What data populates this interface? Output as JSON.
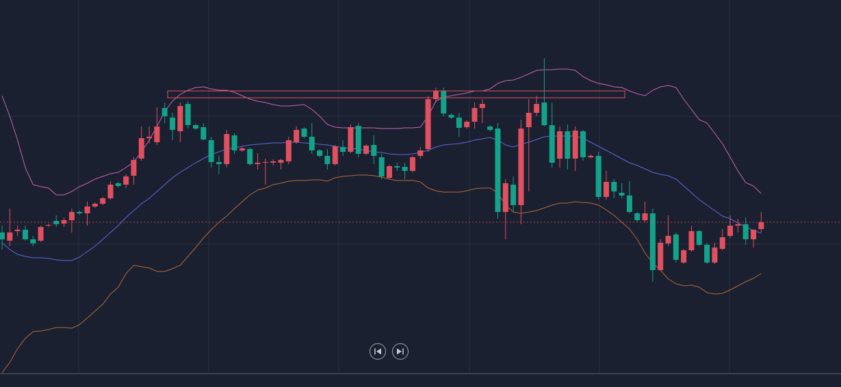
{
  "chart_data": {
    "type": "candlestick",
    "up_color": "#e0505e",
    "down_color": "#13a38a",
    "ylim": [
      0,
      546
    ],
    "open": [
      206,
      194,
      208,
      210,
      196,
      194,
      216,
      223,
      219,
      224,
      236,
      234,
      244,
      248,
      256,
      278,
      276,
      289,
      314,
      344,
      338,
      388,
      374,
      354,
      394,
      363,
      360,
      341,
      309,
      306,
      348,
      326,
      328,
      306,
      308,
      308,
      308,
      310,
      338,
      358,
      346,
      326,
      318,
      306,
      331,
      324,
      362,
      321,
      334,
      316,
      286,
      303,
      302,
      296,
      318,
      328,
      401,
      413,
      378,
      374,
      360,
      368,
      388,
      361,
      358,
      236,
      276,
      246,
      360,
      381,
      396,
      363,
      314,
      354,
      314,
      354,
      316,
      318,
      258,
      280,
      264,
      260,
      234,
      224,
      234,
      151,
      190,
      203,
      162,
      180,
      208,
      188,
      162,
      182,
      201,
      216,
      218,
      196,
      211
    ],
    "high": [
      216,
      241,
      216,
      216,
      201,
      216,
      219,
      231,
      228,
      241,
      238,
      251,
      250,
      258,
      281,
      280,
      291,
      316,
      361,
      361,
      389,
      396,
      381,
      396,
      398,
      365,
      366,
      346,
      318,
      356,
      351,
      331,
      330,
      322,
      314,
      313,
      314,
      346,
      361,
      360,
      366,
      328,
      328,
      334,
      341,
      364,
      366,
      335,
      348,
      321,
      305,
      308,
      308,
      318,
      331,
      406,
      418,
      418,
      380,
      381,
      370,
      396,
      401,
      363,
      366,
      284,
      288,
      371,
      401,
      406,
      461,
      396,
      361,
      364,
      361,
      356,
      320,
      324,
      296,
      284,
      278,
      281,
      236,
      251,
      241,
      196,
      231,
      206,
      182,
      216,
      210,
      191,
      191,
      211,
      231,
      226,
      228,
      211,
      236
    ],
    "low": [
      181,
      186,
      201,
      194,
      186,
      192,
      214,
      214,
      214,
      206,
      232,
      216,
      242,
      246,
      254,
      272,
      271,
      276,
      311,
      336,
      334,
      366,
      341,
      338,
      358,
      356,
      341,
      301,
      291,
      301,
      321,
      324,
      304,
      298,
      276,
      304,
      298,
      306,
      336,
      344,
      321,
      316,
      298,
      304,
      318,
      322,
      316,
      319,
      306,
      284,
      284,
      296,
      284,
      294,
      314,
      324,
      396,
      376,
      372,
      346,
      358,
      358,
      366,
      354,
      226,
      196,
      236,
      218,
      266,
      376,
      361,
      301,
      301,
      298,
      296,
      311,
      314,
      254,
      254,
      256,
      256,
      234,
      222,
      221,
      134,
      150,
      186,
      162,
      160,
      178,
      186,
      160,
      160,
      180,
      198,
      206,
      188,
      184,
      206
    ],
    "close": [
      196,
      206,
      210,
      196,
      190,
      214,
      217,
      218,
      224,
      236,
      234,
      244,
      248,
      256,
      276,
      274,
      288,
      312,
      344,
      346,
      361,
      376,
      356,
      391,
      363,
      358,
      342,
      309,
      306,
      350,
      326,
      329,
      306,
      308,
      309,
      310,
      312,
      341,
      356,
      346,
      326,
      318,
      306,
      332,
      324,
      360,
      321,
      333,
      318,
      288,
      303,
      301,
      296,
      316,
      326,
      401,
      413,
      380,
      374,
      359,
      368,
      388,
      394,
      356,
      236,
      278,
      246,
      358,
      381,
      394,
      363,
      308,
      354,
      314,
      355,
      316,
      318,
      258,
      280,
      266,
      260,
      236,
      224,
      234,
      151,
      191,
      201,
      166,
      180,
      208,
      188,
      162,
      184,
      199,
      216,
      218,
      196,
      210,
      221
    ],
    "series": [
      {
        "color": "#c865b0",
        "values": [
          406,
          376,
          341,
          301,
          276,
          273,
          271,
          261,
          261,
          266,
          273,
          278,
          284,
          288,
          292,
          294,
          301,
          309,
          324,
          341,
          361,
          383,
          398,
          408,
          414,
          418,
          419,
          416,
          414,
          414,
          411,
          406,
          401,
          398,
          396,
          393,
          391,
          391,
          392,
          393,
          386,
          376,
          364,
          360,
          359,
          359,
          359,
          359,
          359,
          358,
          358,
          358,
          359,
          359,
          360,
          376,
          398,
          404,
          406,
          408,
          410,
          413,
          413,
          416,
          424,
          428,
          429,
          433,
          438,
          443,
          444,
          444,
          445,
          445,
          443,
          434,
          428,
          424,
          422,
          419,
          418,
          413,
          409,
          406,
          414,
          419,
          421,
          418,
          401,
          386,
          371,
          366,
          351,
          336,
          316,
          296,
          279,
          274,
          263
        ]
      },
      {
        "color": "#5a6bd8",
        "values": [
          191,
          181,
          174,
          171,
          169,
          169,
          168,
          166,
          165,
          165,
          170,
          178,
          186,
          196,
          206,
          216,
          228,
          238,
          248,
          256,
          266,
          276,
          286,
          294,
          301,
          308,
          314,
          320,
          324,
          328,
          330,
          332,
          334,
          335,
          336,
          337,
          337,
          338,
          338,
          337,
          336,
          335,
          334,
          332,
          330,
          329,
          328,
          326,
          324,
          323,
          321,
          320,
          320,
          321,
          323,
          326,
          331,
          334,
          335,
          336,
          338,
          341,
          343,
          345,
          341,
          334,
          331,
          335,
          338,
          342,
          346,
          347,
          347,
          347,
          347,
          344,
          338,
          332,
          326,
          320,
          314,
          308,
          304,
          299,
          294,
          291,
          289,
          284,
          274,
          264,
          254,
          246,
          238,
          230,
          226,
          220,
          214,
          209,
          205
        ]
      },
      {
        "color": "#b06a3a",
        "values": [
          1,
          16,
          36,
          51,
          61,
          62,
          64,
          67,
          67,
          66,
          71,
          81,
          91,
          101,
          116,
          126,
          146,
          158,
          156,
          154,
          149,
          149,
          153,
          158,
          171,
          184,
          198,
          210,
          221,
          230,
          241,
          251,
          261,
          268,
          271,
          276,
          278,
          281,
          282,
          282,
          283,
          283,
          281,
          286,
          288,
          289,
          290,
          290,
          289,
          287,
          284,
          282,
          282,
          282,
          280,
          271,
          267,
          265,
          265,
          265,
          267,
          270,
          271,
          271,
          264,
          246,
          236,
          234,
          236,
          238,
          242,
          246,
          249,
          249,
          251,
          250,
          249,
          246,
          239,
          231,
          221,
          211,
          196,
          176,
          161,
          151,
          138,
          131,
          128,
          129,
          126,
          118,
          116,
          117,
          122,
          128,
          134,
          139,
          146
        ]
      }
    ]
  }
}
